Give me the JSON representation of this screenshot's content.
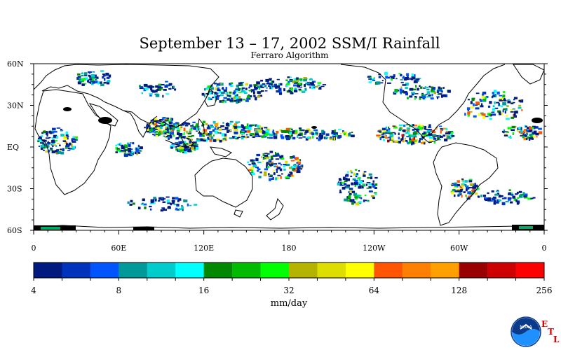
{
  "title": "September 13 – 17, 2002 SSM/I Rainfall",
  "subtitle": "Ferraro Algorithm",
  "lat_labels": [
    "60N",
    "30N",
    "EQ",
    "30S",
    "60S"
  ],
  "lon_labels": [
    "0",
    "60E",
    "120E",
    "180",
    "120W",
    "60W",
    "0"
  ],
  "colorbar": {
    "unit_label": "mm/day",
    "tick_labels": [
      "4",
      "8",
      "16",
      "32",
      "64",
      "128",
      "256"
    ],
    "colors": [
      "#001a80",
      "#0033bb",
      "#0055ff",
      "#009999",
      "#00cccc",
      "#00ffff",
      "#008800",
      "#00bb00",
      "#00ff00",
      "#b3b300",
      "#dddd00",
      "#ffff00",
      "#ff5500",
      "#ff8000",
      "#ffa000",
      "#990000",
      "#cc0000",
      "#ff0000"
    ]
  },
  "logo": {
    "name": "NOAA",
    "etl_letters": [
      "E",
      "T",
      "L"
    ]
  },
  "map_colors": {
    "coast": "#000000",
    "background": "#ffffff"
  }
}
